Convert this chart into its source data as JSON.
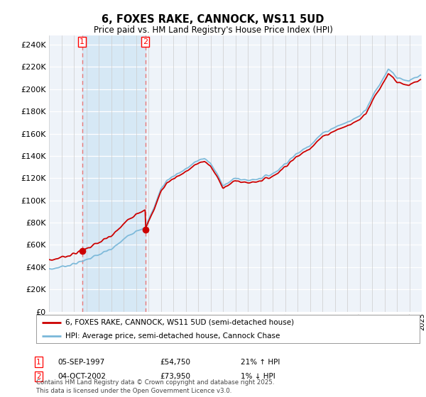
{
  "title": "6, FOXES RAKE, CANNOCK, WS11 5UD",
  "subtitle": "Price paid vs. HM Land Registry's House Price Index (HPI)",
  "legend_line1": "6, FOXES RAKE, CANNOCK, WS11 5UD (semi-detached house)",
  "legend_line2": "HPI: Average price, semi-detached house, Cannock Chase",
  "annotation1_date": "05-SEP-1997",
  "annotation1_price": "£54,750",
  "annotation1_hpi": "21% ↑ HPI",
  "annotation2_date": "04-OCT-2002",
  "annotation2_price": "£73,950",
  "annotation2_hpi": "1% ↓ HPI",
  "footnote": "Contains HM Land Registry data © Crown copyright and database right 2025.\nThis data is licensed under the Open Government Licence v3.0.",
  "sale1_year": 1997.67,
  "sale1_price": 54750,
  "sale2_year": 2002.75,
  "sale2_price": 73950,
  "hpi_color": "#7ab8d9",
  "price_color": "#cc0000",
  "dashed_color": "#e87878",
  "fill_color": "#d6e8f5",
  "ylim_min": 0,
  "ylim_max": 248000,
  "ytick_step": 20000,
  "background_color": "#ffffff",
  "plot_bg_color": "#eef3f9"
}
